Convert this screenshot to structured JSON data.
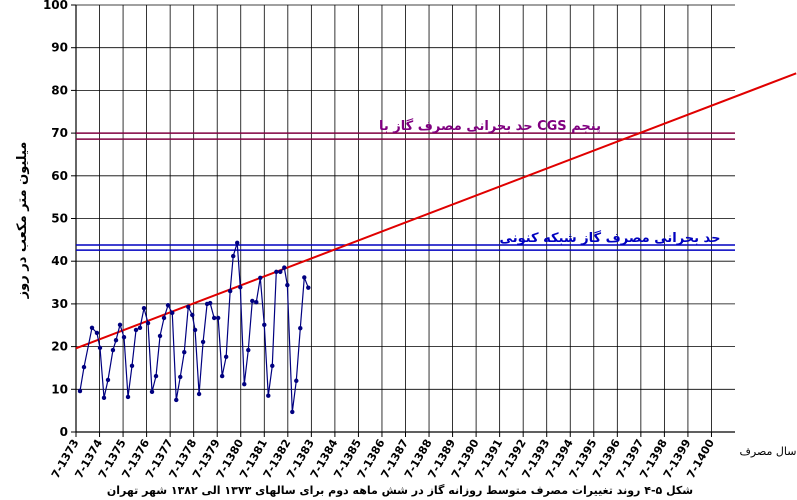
{
  "chart_data": {
    "type": "line",
    "caption": "شکل ۵-۴ روند تغییرات مصرف متوسط روزانه گاز در شش ماهه دوم برای سالهای ۱۳۷۳ الی ۱۳۸۲ شهر تهران",
    "y_label": "میلیون متر مکعب در روز",
    "x_label": "سال مصرف",
    "xlim": [
      0,
      28
    ],
    "xticks": [
      {
        "value": 0,
        "label": "7-1373"
      },
      {
        "value": 1,
        "label": "7-1374"
      },
      {
        "value": 2,
        "label": "7-1375"
      },
      {
        "value": 3,
        "label": "7-1376"
      },
      {
        "value": 4,
        "label": "7-1377"
      },
      {
        "value": 5,
        "label": "7-1378"
      },
      {
        "value": 6,
        "label": "7-1379"
      },
      {
        "value": 7,
        "label": "7-1380"
      },
      {
        "value": 8,
        "label": "7-1381"
      },
      {
        "value": 9,
        "label": "7-1382"
      },
      {
        "value": 10,
        "label": "7-1383"
      },
      {
        "value": 11,
        "label": "7-1384"
      },
      {
        "value": 12,
        "label": "7-1385"
      },
      {
        "value": 13,
        "label": "7-1386"
      },
      {
        "value": 14,
        "label": "7-1387"
      },
      {
        "value": 15,
        "label": "7-1388"
      },
      {
        "value": 16,
        "label": "7-1389"
      },
      {
        "value": 17,
        "label": "7-1390"
      },
      {
        "value": 18,
        "label": "7-1391"
      },
      {
        "value": 19,
        "label": "7-1392"
      },
      {
        "value": 20,
        "label": "7-1393"
      },
      {
        "value": 21,
        "label": "7-1394"
      },
      {
        "value": 22,
        "label": "7-1395"
      },
      {
        "value": 23,
        "label": "7-1396"
      },
      {
        "value": 24,
        "label": "7-1397"
      },
      {
        "value": 25,
        "label": "7-1398"
      },
      {
        "value": 26,
        "label": "7-1399"
      },
      {
        "value": 27,
        "label": "7-1400"
      }
    ],
    "ylim": [
      0,
      100
    ],
    "yticks": [
      0,
      10,
      20,
      30,
      40,
      50,
      60,
      70,
      80,
      90,
      100
    ],
    "grid": true,
    "series": [
      {
        "color": "#000080",
        "x": [
          0.17,
          0.34,
          0.68,
          0.89,
          1.02,
          1.19,
          1.36,
          1.57,
          1.7,
          1.87,
          2.04,
          2.21,
          2.38,
          2.55,
          2.72,
          2.89,
          3.06,
          3.23,
          3.4,
          3.57,
          3.74,
          3.91,
          4.09,
          4.26,
          4.43,
          4.6,
          4.77,
          4.94,
          5.06,
          5.23,
          5.4,
          5.57,
          5.7,
          5.87,
          6.04,
          6.21,
          6.38,
          6.55,
          6.68,
          6.85,
          6.98,
          7.15,
          7.32,
          7.49,
          7.66,
          7.83,
          8.0,
          8.17,
          8.34,
          8.51,
          8.68,
          8.85,
          8.98,
          9.19,
          9.36,
          9.53,
          9.7,
          9.87
        ],
        "values": [
          9.6,
          15.2,
          24.4,
          23.2,
          19.7,
          8.0,
          12.2,
          19.2,
          21.5,
          25.1,
          22.2,
          8.2,
          15.5,
          23.9,
          24.4,
          29.0,
          25.5,
          9.4,
          13.1,
          22.5,
          26.7,
          29.7,
          27.9,
          7.5,
          12.9,
          18.7,
          29.3,
          27.4,
          23.9,
          8.9,
          21.1,
          30.0,
          30.2,
          26.7,
          26.7,
          13.1,
          17.6,
          33.0,
          41.2,
          44.3,
          33.9,
          11.2,
          19.2,
          30.7,
          30.4,
          36.1,
          25.1,
          8.5,
          15.5,
          37.5,
          37.5,
          38.5,
          34.4,
          4.7,
          12.0,
          24.3,
          36.2,
          33.8
        ]
      }
    ],
    "trend": {
      "color": "#e00000",
      "x": [
        0,
        30.6
      ],
      "values": [
        19.6,
        84
      ]
    },
    "reference_lines": [
      {
        "color": "#800040",
        "values": [
          68.6,
          70.0
        ],
        "label": "حد بحرانی مصرف گاز با CGS پنجم",
        "label_color": "#800080"
      },
      {
        "color": "#0000c0",
        "values": [
          42.6,
          43.8
        ],
        "label": "حد بحرانی مصرف گاز شبکه کنونی",
        "label_color": "#0000c0"
      }
    ]
  }
}
